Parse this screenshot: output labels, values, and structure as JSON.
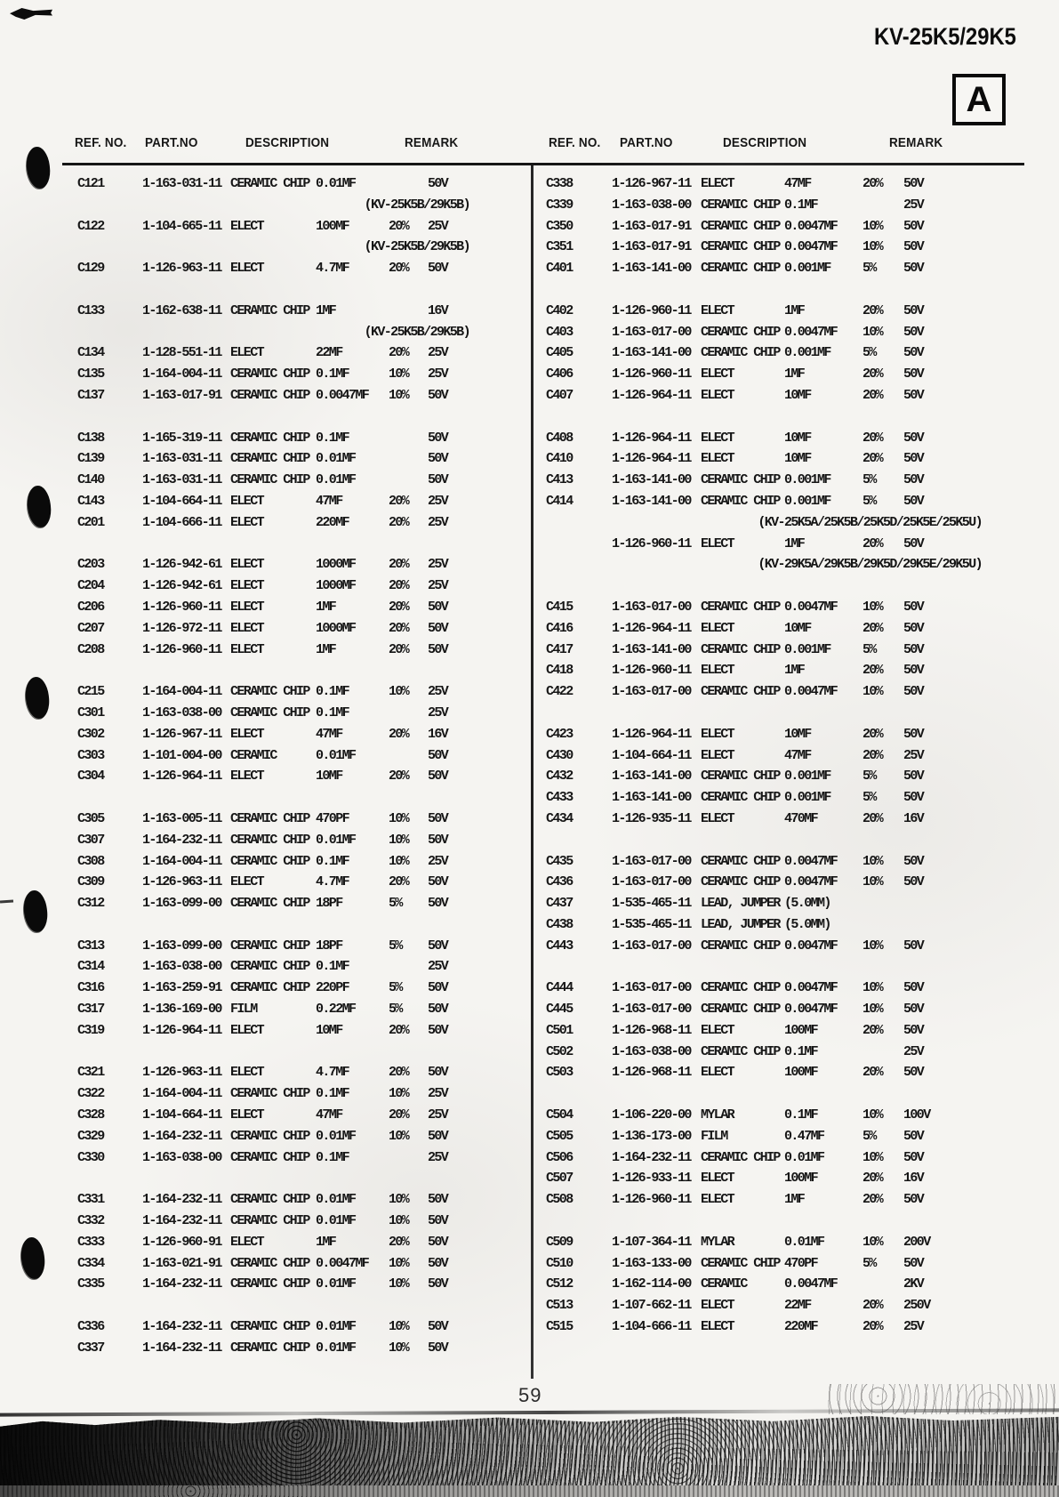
{
  "page": {
    "model": "KV-25K5/29K5",
    "section_label": "A",
    "page_number": "59"
  },
  "table": {
    "headers": [
      "REF. NO.",
      "PART.NO",
      "DESCRIPTION",
      "REMARK"
    ],
    "columns": [
      {
        "id": "left",
        "rows": [
          {
            "ref": "C121",
            "part": "1-163-031-11",
            "type": "CERAMIC CHIP",
            "value": "0.01MF",
            "tol": "",
            "volt": "50V"
          },
          {
            "note": "(KV-25K5B/29K5B)"
          },
          {
            "ref": "C122",
            "part": "1-104-665-11",
            "type": "ELECT",
            "value": "100MF",
            "tol": "20%",
            "volt": "25V"
          },
          {
            "note": "(KV-25K5B/29K5B)"
          },
          {
            "ref": "C129",
            "part": "1-126-963-11",
            "type": "ELECT",
            "value": "4.7MF",
            "tol": "20%",
            "volt": "50V"
          },
          {
            "gap": true
          },
          {
            "ref": "C133",
            "part": "1-162-638-11",
            "type": "CERAMIC CHIP",
            "value": "1MF",
            "tol": "",
            "volt": "16V"
          },
          {
            "note": "(KV-25K5B/29K5B)"
          },
          {
            "ref": "C134",
            "part": "1-128-551-11",
            "type": "ELECT",
            "value": "22MF",
            "tol": "20%",
            "volt": "25V"
          },
          {
            "ref": "C135",
            "part": "1-164-004-11",
            "type": "CERAMIC CHIP",
            "value": "0.1MF",
            "tol": "10%",
            "volt": "25V"
          },
          {
            "ref": "C137",
            "part": "1-163-017-91",
            "type": "CERAMIC CHIP",
            "value": "0.0047MF",
            "tol": "10%",
            "volt": "50V"
          },
          {
            "gap": true
          },
          {
            "ref": "C138",
            "part": "1-165-319-11",
            "type": "CERAMIC CHIP",
            "value": "0.1MF",
            "tol": "",
            "volt": "50V"
          },
          {
            "ref": "C139",
            "part": "1-163-031-11",
            "type": "CERAMIC CHIP",
            "value": "0.01MF",
            "tol": "",
            "volt": "50V"
          },
          {
            "ref": "C140",
            "part": "1-163-031-11",
            "type": "CERAMIC CHIP",
            "value": "0.01MF",
            "tol": "",
            "volt": "50V"
          },
          {
            "ref": "C143",
            "part": "1-104-664-11",
            "type": "ELECT",
            "value": "47MF",
            "tol": "20%",
            "volt": "25V"
          },
          {
            "ref": "C201",
            "part": "1-104-666-11",
            "type": "ELECT",
            "value": "220MF",
            "tol": "20%",
            "volt": "25V"
          },
          {
            "gap": true
          },
          {
            "ref": "C203",
            "part": "1-126-942-61",
            "type": "ELECT",
            "value": "1000MF",
            "tol": "20%",
            "volt": "25V"
          },
          {
            "ref": "C204",
            "part": "1-126-942-61",
            "type": "ELECT",
            "value": "1000MF",
            "tol": "20%",
            "volt": "25V"
          },
          {
            "ref": "C206",
            "part": "1-126-960-11",
            "type": "ELECT",
            "value": "1MF",
            "tol": "20%",
            "volt": "50V"
          },
          {
            "ref": "C207",
            "part": "1-126-972-11",
            "type": "ELECT",
            "value": "1000MF",
            "tol": "20%",
            "volt": "50V"
          },
          {
            "ref": "C208",
            "part": "1-126-960-11",
            "type": "ELECT",
            "value": "1MF",
            "tol": "20%",
            "volt": "50V"
          },
          {
            "gap": true
          },
          {
            "ref": "C215",
            "part": "1-164-004-11",
            "type": "CERAMIC CHIP",
            "value": "0.1MF",
            "tol": "10%",
            "volt": "25V"
          },
          {
            "ref": "C301",
            "part": "1-163-038-00",
            "type": "CERAMIC CHIP",
            "value": "0.1MF",
            "tol": "",
            "volt": "25V"
          },
          {
            "ref": "C302",
            "part": "1-126-967-11",
            "type": "ELECT",
            "value": "47MF",
            "tol": "20%",
            "volt": "16V"
          },
          {
            "ref": "C303",
            "part": "1-101-004-00",
            "type": "CERAMIC",
            "value": "0.01MF",
            "tol": "",
            "volt": "50V"
          },
          {
            "ref": "C304",
            "part": "1-126-964-11",
            "type": "ELECT",
            "value": "10MF",
            "tol": "20%",
            "volt": "50V"
          },
          {
            "gap": true
          },
          {
            "ref": "C305",
            "part": "1-163-005-11",
            "type": "CERAMIC CHIP",
            "value": "470PF",
            "tol": "10%",
            "volt": "50V"
          },
          {
            "ref": "C307",
            "part": "1-164-232-11",
            "type": "CERAMIC CHIP",
            "value": "0.01MF",
            "tol": "10%",
            "volt": "50V"
          },
          {
            "ref": "C308",
            "part": "1-164-004-11",
            "type": "CERAMIC CHIP",
            "value": "0.1MF",
            "tol": "10%",
            "volt": "25V"
          },
          {
            "ref": "C309",
            "part": "1-126-963-11",
            "type": "ELECT",
            "value": "4.7MF",
            "tol": "20%",
            "volt": "50V"
          },
          {
            "ref": "C312",
            "part": "1-163-099-00",
            "type": "CERAMIC CHIP",
            "value": "18PF",
            "tol": "5%",
            "volt": "50V"
          },
          {
            "gap": true
          },
          {
            "ref": "C313",
            "part": "1-163-099-00",
            "type": "CERAMIC CHIP",
            "value": "18PF",
            "tol": "5%",
            "volt": "50V"
          },
          {
            "ref": "C314",
            "part": "1-163-038-00",
            "type": "CERAMIC CHIP",
            "value": "0.1MF",
            "tol": "",
            "volt": "25V"
          },
          {
            "ref": "C316",
            "part": "1-163-259-91",
            "type": "CERAMIC CHIP",
            "value": "220PF",
            "tol": "5%",
            "volt": "50V"
          },
          {
            "ref": "C317",
            "part": "1-136-169-00",
            "type": "FILM",
            "value": "0.22MF",
            "tol": "5%",
            "volt": "50V"
          },
          {
            "ref": "C319",
            "part": "1-126-964-11",
            "type": "ELECT",
            "value": "10MF",
            "tol": "20%",
            "volt": "50V"
          },
          {
            "gap": true
          },
          {
            "ref": "C321",
            "part": "1-126-963-11",
            "type": "ELECT",
            "value": "4.7MF",
            "tol": "20%",
            "volt": "50V"
          },
          {
            "ref": "C322",
            "part": "1-164-004-11",
            "type": "CERAMIC CHIP",
            "value": "0.1MF",
            "tol": "10%",
            "volt": "25V"
          },
          {
            "ref": "C328",
            "part": "1-104-664-11",
            "type": "ELECT",
            "value": "47MF",
            "tol": "20%",
            "volt": "25V"
          },
          {
            "ref": "C329",
            "part": "1-164-232-11",
            "type": "CERAMIC CHIP",
            "value": "0.01MF",
            "tol": "10%",
            "volt": "50V"
          },
          {
            "ref": "C330",
            "part": "1-163-038-00",
            "type": "CERAMIC CHIP",
            "value": "0.1MF",
            "tol": "",
            "volt": "25V"
          },
          {
            "gap": true
          },
          {
            "ref": "C331",
            "part": "1-164-232-11",
            "type": "CERAMIC CHIP",
            "value": "0.01MF",
            "tol": "10%",
            "volt": "50V"
          },
          {
            "ref": "C332",
            "part": "1-164-232-11",
            "type": "CERAMIC CHIP",
            "value": "0.01MF",
            "tol": "10%",
            "volt": "50V"
          },
          {
            "ref": "C333",
            "part": "1-126-960-91",
            "type": "ELECT",
            "value": "1MF",
            "tol": "20%",
            "volt": "50V"
          },
          {
            "ref": "C334",
            "part": "1-163-021-91",
            "type": "CERAMIC CHIP",
            "value": "0.0047MF",
            "tol": "10%",
            "volt": "50V"
          },
          {
            "ref": "C335",
            "part": "1-164-232-11",
            "type": "CERAMIC CHIP",
            "value": "0.01MF",
            "tol": "10%",
            "volt": "50V"
          },
          {
            "gap": true
          },
          {
            "ref": "C336",
            "part": "1-164-232-11",
            "type": "CERAMIC CHIP",
            "value": "0.01MF",
            "tol": "10%",
            "volt": "50V"
          },
          {
            "ref": "C337",
            "part": "1-164-232-11",
            "type": "CERAMIC CHIP",
            "value": "0.01MF",
            "tol": "10%",
            "volt": "50V"
          }
        ]
      },
      {
        "id": "right",
        "rows": [
          {
            "ref": "C338",
            "part": "1-126-967-11",
            "type": "ELECT",
            "value": "47MF",
            "tol": "20%",
            "volt": "50V"
          },
          {
            "ref": "C339",
            "part": "1-163-038-00",
            "type": "CERAMIC CHIP",
            "value": "0.1MF",
            "tol": "",
            "volt": "25V"
          },
          {
            "ref": "C350",
            "part": "1-163-017-91",
            "type": "CERAMIC CHIP",
            "value": "0.0047MF",
            "tol": "10%",
            "volt": "50V"
          },
          {
            "ref": "C351",
            "part": "1-163-017-91",
            "type": "CERAMIC CHIP",
            "value": "0.0047MF",
            "tol": "10%",
            "volt": "50V"
          },
          {
            "ref": "C401",
            "part": "1-163-141-00",
            "type": "CERAMIC CHIP",
            "value": "0.001MF",
            "tol": "5%",
            "volt": "50V"
          },
          {
            "gap": true
          },
          {
            "ref": "C402",
            "part": "1-126-960-11",
            "type": "ELECT",
            "value": "1MF",
            "tol": "20%",
            "volt": "50V"
          },
          {
            "ref": "C403",
            "part": "1-163-017-00",
            "type": "CERAMIC CHIP",
            "value": "0.0047MF",
            "tol": "10%",
            "volt": "50V"
          },
          {
            "ref": "C405",
            "part": "1-163-141-00",
            "type": "CERAMIC CHIP",
            "value": "0.001MF",
            "tol": "5%",
            "volt": "50V"
          },
          {
            "ref": "C406",
            "part": "1-126-960-11",
            "type": "ELECT",
            "value": "1MF",
            "tol": "20%",
            "volt": "50V"
          },
          {
            "ref": "C407",
            "part": "1-126-964-11",
            "type": "ELECT",
            "value": "10MF",
            "tol": "20%",
            "volt": "50V"
          },
          {
            "gap": true
          },
          {
            "ref": "C408",
            "part": "1-126-964-11",
            "type": "ELECT",
            "value": "10MF",
            "tol": "20%",
            "volt": "50V"
          },
          {
            "ref": "C410",
            "part": "1-126-964-11",
            "type": "ELECT",
            "value": "10MF",
            "tol": "20%",
            "volt": "50V"
          },
          {
            "ref": "C413",
            "part": "1-163-141-00",
            "type": "CERAMIC CHIP",
            "value": "0.001MF",
            "tol": "5%",
            "volt": "50V"
          },
          {
            "ref": "C414",
            "part": "1-163-141-00",
            "type": "CERAMIC CHIP",
            "value": "0.001MF",
            "tol": "5%",
            "volt": "50V"
          },
          {
            "note": "(KV-25K5A/25K5B/25K5D/25K5E/25K5U)"
          },
          {
            "ref": "",
            "part": "1-126-960-11",
            "type": "ELECT",
            "value": "1MF",
            "tol": "20%",
            "volt": "50V"
          },
          {
            "note": "(KV-29K5A/29K5B/29K5D/29K5E/29K5U)"
          },
          {
            "gap": true
          },
          {
            "ref": "C415",
            "part": "1-163-017-00",
            "type": "CERAMIC CHIP",
            "value": "0.0047MF",
            "tol": "10%",
            "volt": "50V"
          },
          {
            "ref": "C416",
            "part": "1-126-964-11",
            "type": "ELECT",
            "value": "10MF",
            "tol": "20%",
            "volt": "50V"
          },
          {
            "ref": "C417",
            "part": "1-163-141-00",
            "type": "CERAMIC CHIP",
            "value": "0.001MF",
            "tol": "5%",
            "volt": "50V"
          },
          {
            "ref": "C418",
            "part": "1-126-960-11",
            "type": "ELECT",
            "value": "1MF",
            "tol": "20%",
            "volt": "50V"
          },
          {
            "ref": "C422",
            "part": "1-163-017-00",
            "type": "CERAMIC CHIP",
            "value": "0.0047MF",
            "tol": "10%",
            "volt": "50V"
          },
          {
            "gap": true
          },
          {
            "ref": "C423",
            "part": "1-126-964-11",
            "type": "ELECT",
            "value": "10MF",
            "tol": "20%",
            "volt": "50V"
          },
          {
            "ref": "C430",
            "part": "1-104-664-11",
            "type": "ELECT",
            "value": "47MF",
            "tol": "20%",
            "volt": "25V"
          },
          {
            "ref": "C432",
            "part": "1-163-141-00",
            "type": "CERAMIC CHIP",
            "value": "0.001MF",
            "tol": "5%",
            "volt": "50V"
          },
          {
            "ref": "C433",
            "part": "1-163-141-00",
            "type": "CERAMIC CHIP",
            "value": "0.001MF",
            "tol": "5%",
            "volt": "50V"
          },
          {
            "ref": "C434",
            "part": "1-126-935-11",
            "type": "ELECT",
            "value": "470MF",
            "tol": "20%",
            "volt": "16V"
          },
          {
            "gap": true
          },
          {
            "ref": "C435",
            "part": "1-163-017-00",
            "type": "CERAMIC CHIP",
            "value": "0.0047MF",
            "tol": "10%",
            "volt": "50V"
          },
          {
            "ref": "C436",
            "part": "1-163-017-00",
            "type": "CERAMIC CHIP",
            "value": "0.0047MF",
            "tol": "10%",
            "volt": "50V"
          },
          {
            "ref": "C437",
            "part": "1-535-465-11",
            "type": "LEAD, JUMPER",
            "value": "(5.0MM)",
            "tol": "",
            "volt": ""
          },
          {
            "ref": "C438",
            "part": "1-535-465-11",
            "type": "LEAD, JUMPER",
            "value": "(5.0MM)",
            "tol": "",
            "volt": ""
          },
          {
            "ref": "C443",
            "part": "1-163-017-00",
            "type": "CERAMIC CHIP",
            "value": "0.0047MF",
            "tol": "10%",
            "volt": "50V"
          },
          {
            "gap": true
          },
          {
            "ref": "C444",
            "part": "1-163-017-00",
            "type": "CERAMIC CHIP",
            "value": "0.0047MF",
            "tol": "10%",
            "volt": "50V"
          },
          {
            "ref": "C445",
            "part": "1-163-017-00",
            "type": "CERAMIC CHIP",
            "value": "0.0047MF",
            "tol": "10%",
            "volt": "50V"
          },
          {
            "ref": "C501",
            "part": "1-126-968-11",
            "type": "ELECT",
            "value": "100MF",
            "tol": "20%",
            "volt": "50V"
          },
          {
            "ref": "C502",
            "part": "1-163-038-00",
            "type": "CERAMIC CHIP",
            "value": "0.1MF",
            "tol": "",
            "volt": "25V"
          },
          {
            "ref": "C503",
            "part": "1-126-968-11",
            "type": "ELECT",
            "value": "100MF",
            "tol": "20%",
            "volt": "50V"
          },
          {
            "gap": true
          },
          {
            "ref": "C504",
            "part": "1-106-220-00",
            "type": "MYLAR",
            "value": "0.1MF",
            "tol": "10%",
            "volt": "100V"
          },
          {
            "ref": "C505",
            "part": "1-136-173-00",
            "type": "FILM",
            "value": "0.47MF",
            "tol": "5%",
            "volt": "50V"
          },
          {
            "ref": "C506",
            "part": "1-164-232-11",
            "type": "CERAMIC CHIP",
            "value": "0.01MF",
            "tol": "10%",
            "volt": "50V"
          },
          {
            "ref": "C507",
            "part": "1-126-933-11",
            "type": "ELECT",
            "value": "100MF",
            "tol": "20%",
            "volt": "16V"
          },
          {
            "ref": "C508",
            "part": "1-126-960-11",
            "type": "ELECT",
            "value": "1MF",
            "tol": "20%",
            "volt": "50V"
          },
          {
            "gap": true
          },
          {
            "ref": "C509",
            "part": "1-107-364-11",
            "type": "MYLAR",
            "value": "0.01MF",
            "tol": "10%",
            "volt": "200V"
          },
          {
            "ref": "C510",
            "part": "1-163-133-00",
            "type": "CERAMIC CHIP",
            "value": "470PF",
            "tol": "5%",
            "volt": "50V"
          },
          {
            "ref": "C512",
            "part": "1-162-114-00",
            "type": "CERAMIC",
            "value": "0.0047MF",
            "tol": "",
            "volt": "2KV"
          },
          {
            "ref": "C513",
            "part": "1-107-662-11",
            "type": "ELECT",
            "value": "22MF",
            "tol": "20%",
            "volt": "250V"
          },
          {
            "ref": "C515",
            "part": "1-104-666-11",
            "type": "ELECT",
            "value": "220MF",
            "tol": "20%",
            "volt": "25V"
          }
        ]
      }
    ]
  }
}
